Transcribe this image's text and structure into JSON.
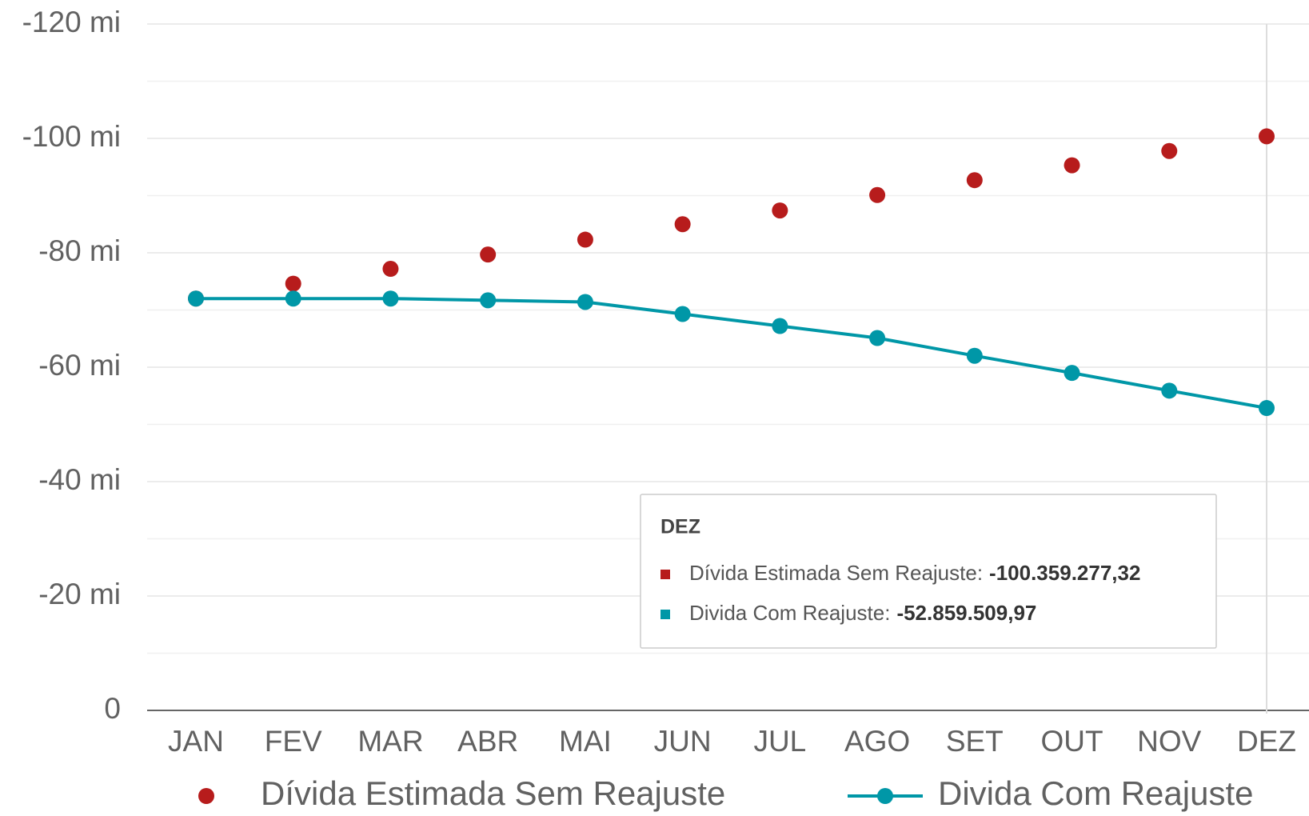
{
  "chart_data": {
    "type": "line",
    "categories": [
      "JAN",
      "FEV",
      "MAR",
      "ABR",
      "MAI",
      "JUN",
      "JUL",
      "AGO",
      "SET",
      "OUT",
      "NOV",
      "DEZ"
    ],
    "series": [
      {
        "name": "Dívida Estimada Sem Reajuste",
        "color": "#b71c1c",
        "mode": "markers",
        "values": [
          -72000000,
          -74600000,
          -77200000,
          -79700000,
          -82300000,
          -85000000,
          -87400000,
          -90100000,
          -92700000,
          -95300000,
          -97800000,
          -100359277.32
        ]
      },
      {
        "name": "Divida Com Reajuste",
        "color": "#0097a7",
        "mode": "lines+markers",
        "values": [
          -72000000,
          -72000000,
          -72000000,
          -71700000,
          -71400000,
          -69300000,
          -67200000,
          -65100000,
          -62000000,
          -59000000,
          -55900000,
          -52859509.97
        ]
      }
    ],
    "ylim": [
      0,
      -120000000
    ],
    "yticks": [
      0,
      {
        "value": -20000000,
        "label": "-20 mi"
      },
      {
        "value": -40000000,
        "label": "-40 mi"
      },
      {
        "value": -60000000,
        "label": "-60 mi"
      },
      {
        "value": -80000000,
        "label": "-80 mi"
      },
      {
        "value": -100000000,
        "label": "-100 mi"
      },
      {
        "value": -120000000,
        "label": "-120 mi"
      }
    ],
    "minor_yticks": [
      -10000000,
      -30000000,
      -50000000,
      -70000000,
      -90000000,
      -110000000
    ],
    "grid": true,
    "legend": "bottom",
    "tooltip": {
      "category": "DEZ",
      "items": [
        {
          "label": "Dívida Estimada Sem Reajuste:",
          "value": "-100.359.277,32"
        },
        {
          "label": "Divida Com Reajuste:",
          "value": "-52.859.509,97"
        }
      ]
    }
  }
}
